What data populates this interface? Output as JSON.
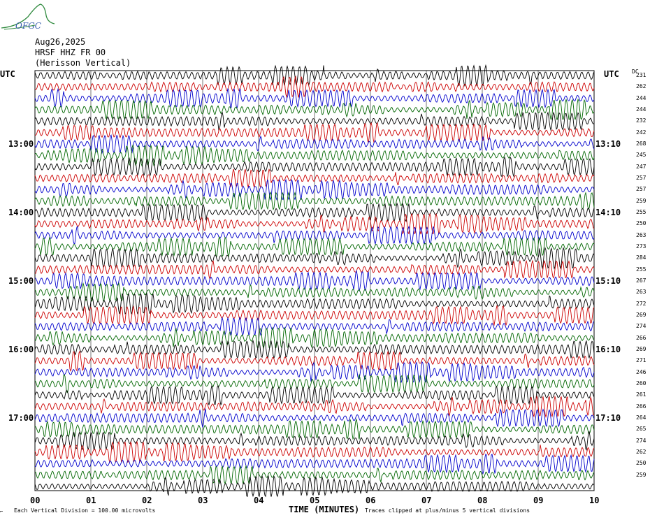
{
  "header": {
    "date": "Aug26,2025",
    "station": "HRSF HHZ FR 00",
    "description": "(Herisson Vertical)",
    "logo_text": "OFGC"
  },
  "utc_label_left": "UTC",
  "utc_label_right": "UTC",
  "dc_label": "DC",
  "chart_data": {
    "type": "helicorder",
    "rows": 37,
    "minutes_per_row": 10,
    "start_row_time": "12:00",
    "trace_colors": [
      "#000000",
      "#cc0000",
      "#0000cc",
      "#006600"
    ],
    "x_ticks": [
      "00",
      "01",
      "02",
      "03",
      "04",
      "05",
      "06",
      "07",
      "08",
      "09",
      "10"
    ],
    "xlabel": "TIME (MINUTES)",
    "xlim": [
      0,
      10
    ],
    "grid": true,
    "left_time_labels": [
      {
        "row": 6,
        "text": "13:00"
      },
      {
        "row": 12,
        "text": "14:00"
      },
      {
        "row": 18,
        "text": "15:00"
      },
      {
        "row": 24,
        "text": "16:00"
      },
      {
        "row": 30,
        "text": "17:00"
      }
    ],
    "right_time_labels": [
      {
        "row": 6,
        "text": "13:10"
      },
      {
        "row": 12,
        "text": "14:10"
      },
      {
        "row": 18,
        "text": "15:10"
      },
      {
        "row": 24,
        "text": "16:10"
      },
      {
        "row": 30,
        "text": "17:10"
      }
    ],
    "dc_offsets": [
      231,
      262,
      244,
      244,
      232,
      242,
      268,
      245,
      247,
      257,
      257,
      259,
      255,
      250,
      263,
      273,
      284,
      255,
      267,
      263,
      272,
      269,
      274,
      266,
      269,
      271,
      246,
      260,
      261,
      266,
      264,
      265,
      274,
      262,
      250,
      259
    ],
    "scale_note": "Each Vertical Division =  100.00 microvolts",
    "clip_note": "Traces clipped at plus/minus 5 vertical divisions"
  }
}
